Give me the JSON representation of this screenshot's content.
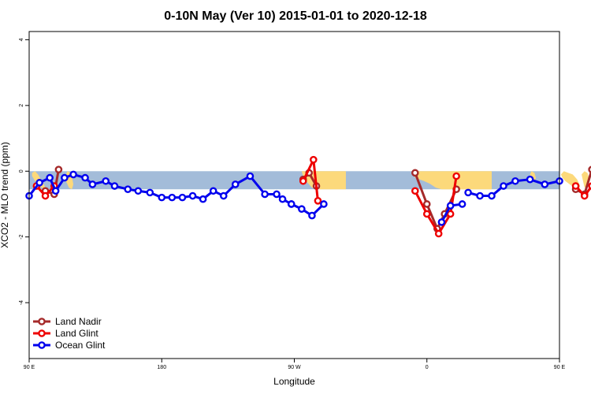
{
  "chart_data": {
    "type": "line",
    "title": "0-10N May (Ver 10)   2015-01-01 to 2020-12-18",
    "xlabel": "Longitude",
    "ylabel": "XCO2 - MLO trend (ppm)",
    "xlim": [
      90,
      450
    ],
    "ylim": [
      -5.7,
      4.25
    ],
    "x_ticks": [
      {
        "value": 90,
        "label": "90 E"
      },
      {
        "value": 180,
        "label": "180"
      },
      {
        "value": 270,
        "label": "90 W"
      },
      {
        "value": 360,
        "label": "0"
      },
      {
        "value": 450,
        "label": "90 E"
      },
      {
        "value": 540,
        "label": "180"
      }
    ],
    "y_ticks": [
      {
        "value": 4,
        "label": "4"
      },
      {
        "value": 2,
        "label": "2"
      },
      {
        "value": 0,
        "label": "0"
      },
      {
        "value": -2,
        "label": "-2"
      },
      {
        "value": -4,
        "label": "-4"
      }
    ],
    "background_band": {
      "ymin": -0.55,
      "ymax": 0.0,
      "color": "#a3bcd9"
    },
    "land_color": "#fcd97b",
    "land_regions": [
      {
        "x": [
          92,
          94,
          96,
          98,
          100,
          101,
          100,
          97,
          94,
          92
        ],
        "y": [
          -0.05,
          0.0,
          -0.1,
          -0.25,
          -0.4,
          -0.5,
          -0.55,
          -0.45,
          -0.3,
          -0.15
        ]
      },
      {
        "x": [
          115,
          116,
          118,
          119,
          120,
          119,
          117,
          115
        ],
        "y": [
          -0.1,
          0.0,
          -0.05,
          -0.15,
          -0.4,
          -0.55,
          -0.5,
          -0.3
        ]
      },
      {
        "x": [
          275,
          279,
          283,
          286,
          288,
          285,
          282,
          279,
          276
        ],
        "y": [
          0.0,
          0.0,
          -0.05,
          -0.2,
          -0.45,
          -0.55,
          -0.5,
          -0.35,
          -0.15
        ]
      },
      {
        "x": [
          281,
          284,
          287,
          290,
          294,
          298,
          302,
          305,
          305,
          301,
          297,
          294,
          290,
          287,
          284,
          281
        ],
        "y": [
          0.0,
          0.0,
          0.0,
          0.0,
          0.0,
          0.0,
          0.0,
          0.0,
          -0.55,
          -0.55,
          -0.55,
          -0.55,
          -0.55,
          -0.55,
          -0.45,
          -0.2
        ]
      },
      {
        "x": [
          351,
          360,
          370,
          380,
          390,
          400,
          404,
          404,
          396,
          390,
          384,
          376,
          370,
          366,
          362,
          358,
          352
        ],
        "y": [
          0.0,
          0.0,
          0.0,
          0.0,
          0.0,
          0.0,
          0.0,
          -0.55,
          -0.55,
          -0.55,
          -0.55,
          -0.55,
          -0.55,
          -0.5,
          -0.38,
          -0.3,
          -0.2
        ]
      },
      {
        "x": [
          430,
          431,
          433,
          434,
          433,
          431
        ],
        "y": [
          -0.1,
          0.0,
          -0.05,
          -0.2,
          -0.3,
          -0.25
        ]
      },
      {
        "x": [
          451,
          453,
          456,
          459,
          462,
          464,
          463,
          460,
          457,
          454,
          452
        ],
        "y": [
          -0.1,
          0.0,
          -0.05,
          -0.1,
          -0.25,
          -0.45,
          -0.55,
          -0.5,
          -0.4,
          -0.3,
          -0.2
        ]
      },
      {
        "x": [
          465,
          467,
          469,
          470,
          469,
          467
        ],
        "y": [
          -0.1,
          0.0,
          -0.05,
          -0.2,
          -0.45,
          -0.5
        ]
      }
    ],
    "series": [
      {
        "name": "Land Nadir",
        "color": "#a52a2a",
        "line_width": 3,
        "segments": [
          {
            "x": [
              101,
              107,
              110
            ],
            "y": [
              -0.6,
              -0.7,
              0.05
            ]
          },
          {
            "x": [
              276,
              280,
              285
            ],
            "y": [
              -0.25,
              -0.05,
              -0.45
            ]
          },
          {
            "x": [
              352,
              360,
              367,
              372,
              380
            ],
            "y": [
              -0.05,
              -1.0,
              -1.75,
              -1.3,
              -0.55
            ]
          },
          {
            "x": [
              461,
              467,
              472
            ],
            "y": [
              -0.55,
              -0.7,
              0.05
            ]
          }
        ]
      },
      {
        "name": "Land Glint",
        "color": "#ee0000",
        "line_width": 3,
        "segments": [
          {
            "x": [
              95,
              101,
              107
            ],
            "y": [
              -0.45,
              -0.75,
              -0.45
            ]
          },
          {
            "x": [
              276,
              283,
              286
            ],
            "y": [
              -0.3,
              0.35,
              -0.9
            ]
          },
          {
            "x": [
              352,
              360,
              368,
              376,
              380
            ],
            "y": [
              -0.6,
              -1.3,
              -1.9,
              -1.3,
              -0.15
            ]
          },
          {
            "x": [
              461,
              467,
              472
            ],
            "y": [
              -0.45,
              -0.75,
              -0.45
            ]
          }
        ]
      },
      {
        "name": "Ocean Glint",
        "color": "#0000ee",
        "line_width": 3,
        "segments": [
          {
            "x": [
              90,
              97,
              104,
              108,
              114,
              120,
              128,
              133,
              142,
              148,
              157,
              164,
              172,
              180,
              187,
              194,
              201,
              208,
              215,
              222,
              230,
              240,
              250,
              258,
              262,
              268
            ],
            "y": [
              -0.75,
              -0.35,
              -0.2,
              -0.6,
              -0.2,
              -0.1,
              -0.2,
              -0.4,
              -0.3,
              -0.45,
              -0.55,
              -0.6,
              -0.65,
              -0.8,
              -0.8,
              -0.8,
              -0.75,
              -0.85,
              -0.6,
              -0.75,
              -0.4,
              -0.15,
              -0.7,
              -0.7,
              -0.85,
              -1.0
            ]
          },
          {
            "x": [
              268,
              275,
              282,
              290
            ],
            "y": [
              -1.0,
              -1.15,
              -1.35,
              -1.0
            ]
          },
          {
            "x": [
              370,
              376,
              384
            ],
            "y": [
              -1.55,
              -1.05,
              -1.0
            ]
          },
          {
            "x": [
              388,
              396,
              404,
              412,
              420,
              430,
              440,
              450
            ],
            "y": [
              -0.65,
              -0.75,
              -0.75,
              -0.45,
              -0.3,
              -0.25,
              -0.4,
              -0.3
            ]
          }
        ]
      }
    ],
    "legend": {
      "position": "bottom-left",
      "entries": [
        {
          "name": "Land Nadir",
          "color": "#a52a2a"
        },
        {
          "name": "Land Glint",
          "color": "#ee0000"
        },
        {
          "name": "Ocean Glint",
          "color": "#0000ee"
        }
      ]
    },
    "grid": false
  }
}
